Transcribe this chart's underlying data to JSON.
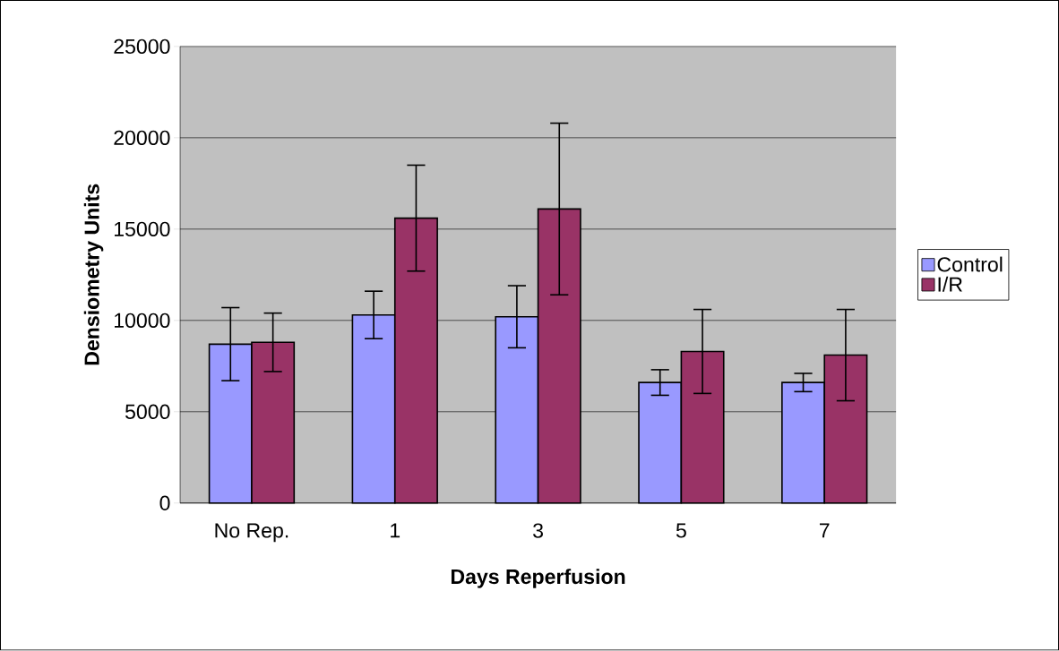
{
  "chart_data": {
    "type": "bar",
    "xlabel": "Days Reperfusion",
    "ylabel": "Densiometry Units",
    "categories": [
      "No Rep.",
      "1",
      "3",
      "5",
      "7"
    ],
    "series": [
      {
        "name": "Control",
        "color": "#9999ff",
        "values": [
          8700,
          10300,
          10200,
          6600,
          6600
        ],
        "errors": [
          2000,
          1300,
          1700,
          700,
          500
        ]
      },
      {
        "name": "I/R",
        "color": "#993366",
        "values": [
          8800,
          15600,
          16100,
          8300,
          8100
        ],
        "errors": [
          1600,
          2900,
          4700,
          2300,
          2500
        ]
      }
    ],
    "ylim": [
      0,
      25000
    ],
    "yticks": [
      0,
      5000,
      10000,
      15000,
      20000,
      25000
    ],
    "grid": "y",
    "legend": "right"
  }
}
